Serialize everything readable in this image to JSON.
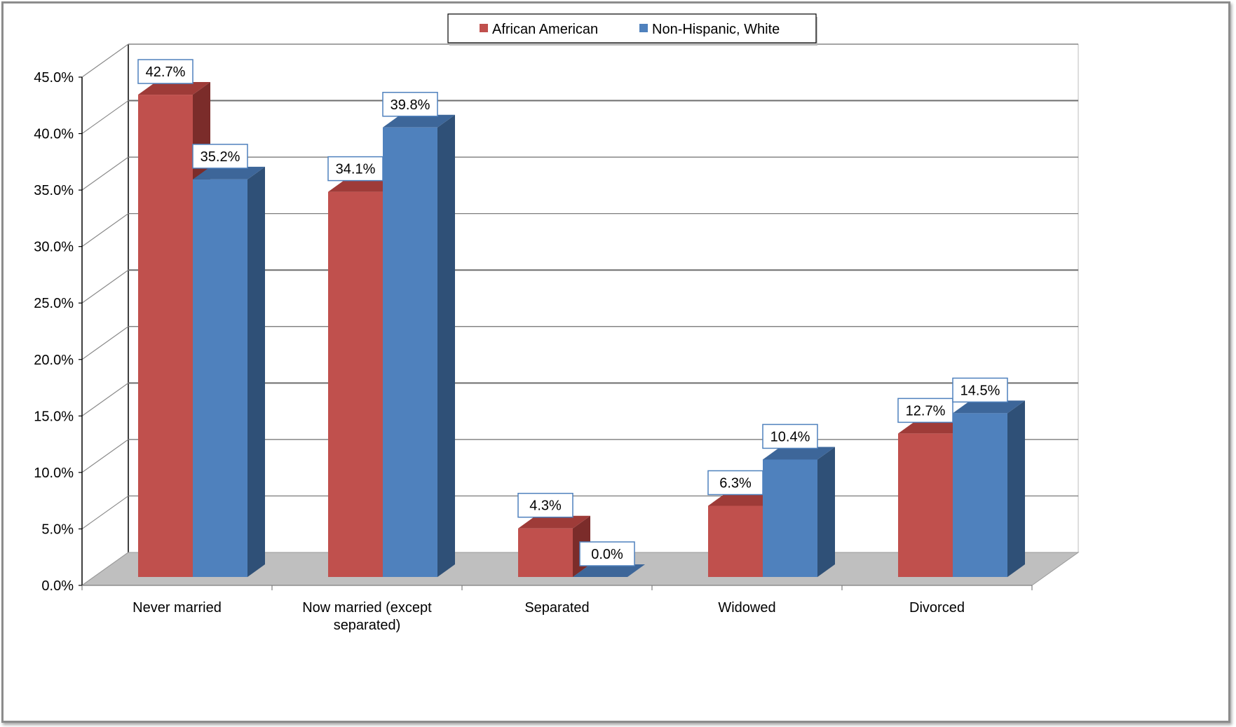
{
  "chart_data": {
    "type": "bar",
    "title": "",
    "xlabel": "",
    "ylabel": "",
    "categories": [
      "Never married",
      "Now married (except separated)",
      "Separated",
      "Widowed",
      "Divorced"
    ],
    "category_label_lines": [
      [
        "Never married"
      ],
      [
        "Now married (except",
        "separated)"
      ],
      [
        "Separated"
      ],
      [
        "Widowed"
      ],
      [
        "Divorced"
      ]
    ],
    "series": [
      {
        "name": "African American",
        "values": [
          42.7,
          34.1,
          4.3,
          6.3,
          12.7
        ],
        "color": "#C0504D",
        "side_color": "#7B2C2A",
        "top_color": "#9E3B38"
      },
      {
        "name": "Non-Hispanic, White",
        "values": [
          35.2,
          39.8,
          0.0,
          10.4,
          14.5
        ],
        "color": "#4F81BD",
        "side_color": "#2F5077",
        "top_color": "#3D6699"
      }
    ],
    "data_labels": [
      [
        "42.7%",
        "34.1%",
        "4.3%",
        "6.3%",
        "12.7%"
      ],
      [
        "35.2%",
        "39.8%",
        "0.0%",
        "10.4%",
        "14.5%"
      ]
    ],
    "ylim": [
      0,
      45
    ],
    "yticks": [
      0,
      5,
      10,
      15,
      20,
      25,
      30,
      35,
      40,
      45
    ],
    "ytick_labels": [
      "0.0%",
      "5.0%",
      "10.0%",
      "15.0%",
      "20.0%",
      "25.0%",
      "30.0%",
      "35.0%",
      "40.0%",
      "45.0%"
    ],
    "grid": true,
    "legend_position": "top-center",
    "floor_color": "#BFBFBF"
  }
}
